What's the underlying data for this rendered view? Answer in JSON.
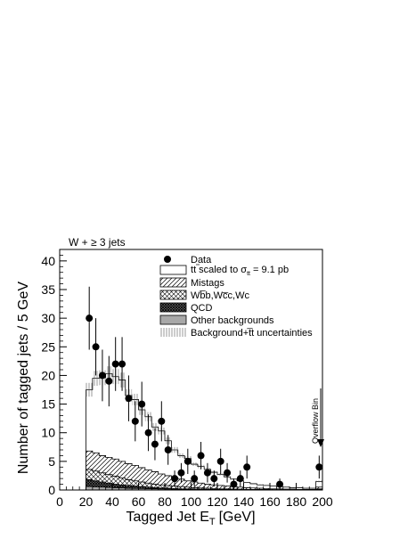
{
  "chart_data": {
    "type": "bar",
    "title": "W + ≥ 3 jets",
    "xlabel": "Tagged Jet E",
    "xlabel_sub": "T",
    "xlabel_unit": "[GeV]",
    "ylabel": "Number of tagged jets / 5 GeV",
    "xlim": [
      0,
      200
    ],
    "ylim": [
      0,
      42
    ],
    "xticks": [
      0,
      20,
      40,
      60,
      80,
      100,
      120,
      140,
      160,
      180,
      200
    ],
    "yticks": [
      0,
      5,
      10,
      15,
      20,
      25,
      30,
      35,
      40
    ],
    "bin_width": 5,
    "bin_low_edges": [
      20,
      25,
      30,
      35,
      40,
      45,
      50,
      55,
      60,
      65,
      70,
      75,
      80,
      85,
      90,
      95,
      100,
      105,
      110,
      115,
      120,
      125,
      130,
      135,
      140,
      145,
      150,
      155,
      160,
      165,
      170,
      175,
      180,
      185,
      190,
      195
    ],
    "series": [
      {
        "name": "t̅t scaled to σtt = 9.1 pb",
        "style": "open",
        "stack_total": [
          17.5,
          19.5,
          19.6,
          20.3,
          19.8,
          19.2,
          16.5,
          15.8,
          14.0,
          12.8,
          11.0,
          10.3,
          8.6,
          7.0,
          6.0,
          5.5,
          4.5,
          4.1,
          3.6,
          3.1,
          2.7,
          2.3,
          1.9,
          1.6,
          1.3,
          1.1,
          0.9,
          0.8,
          0.7,
          0.6,
          0.5,
          0.4,
          0.4,
          0.3,
          0.3,
          1.5
        ]
      },
      {
        "name": "Mistags",
        "style": "hatched",
        "stack_total": [
          6.8,
          6.5,
          6.0,
          5.7,
          5.4,
          5.0,
          4.6,
          4.3,
          3.9,
          3.5,
          3.2,
          2.8,
          2.5,
          2.2,
          1.9,
          1.6,
          1.4,
          1.2,
          1.0,
          0.9,
          0.8,
          0.7,
          0.6,
          0.5,
          0.4,
          0.35,
          0.3,
          0.25,
          0.2,
          0.2,
          0.15,
          0.15,
          0.1,
          0.1,
          0.1,
          0.5
        ]
      },
      {
        "name": "Wb̅b,Wc̅c,Wc",
        "style": "cross-hatched",
        "stack_total": [
          3.6,
          3.3,
          3.0,
          2.7,
          2.4,
          2.1,
          1.8,
          1.6,
          1.4,
          1.2,
          1.0,
          0.9,
          0.8,
          0.7,
          0.6,
          0.5,
          0.4,
          0.35,
          0.3,
          0.25,
          0.2,
          0.2,
          0.15,
          0.15,
          0.1,
          0.1,
          0.1,
          0.1,
          0.05,
          0.05,
          0.05,
          0.05,
          0.05,
          0.05,
          0.05,
          0.2
        ]
      },
      {
        "name": "QCD",
        "style": "dense-cross-hatched",
        "stack_total": [
          1.8,
          1.6,
          1.4,
          1.2,
          1.0,
          0.9,
          0.8,
          0.7,
          0.6,
          0.5,
          0.4,
          0.35,
          0.3,
          0.25,
          0.2,
          0.2,
          0.15,
          0.15,
          0.1,
          0.1,
          0.1,
          0.1,
          0.05,
          0.05,
          0.05,
          0.05,
          0.05,
          0.05,
          0.05,
          0.05,
          0.05,
          0.05,
          0.05,
          0.05,
          0.05,
          0.1
        ]
      },
      {
        "name": "Other backgrounds",
        "style": "filled-gray",
        "stack_total": [
          0.6,
          0.55,
          0.5,
          0.45,
          0.4,
          0.35,
          0.3,
          0.28,
          0.25,
          0.22,
          0.2,
          0.18,
          0.15,
          0.12,
          0.1,
          0.1,
          0.08,
          0.08,
          0.06,
          0.06,
          0.05,
          0.05,
          0.04,
          0.04,
          0.03,
          0.03,
          0.03,
          0.03,
          0.02,
          0.02,
          0.02,
          0.02,
          0.02,
          0.02,
          0.02,
          0.05
        ]
      }
    ],
    "uncertainty": {
      "name": "Background+t̅t uncertainties",
      "style": "vertical-hatch",
      "band": [
        1.2,
        1.3,
        1.3,
        1.3,
        1.3,
        1.3,
        1.1,
        1.0,
        0.9,
        0.8,
        0.7,
        0.6,
        0.6,
        0.5,
        0.4,
        0.4,
        0.3,
        0.3,
        0.25,
        0.2,
        0.2,
        0.15,
        0.15,
        0.1,
        0.1,
        0.1,
        0.1,
        0.1,
        0.1,
        0.1,
        0.05,
        0.05,
        0.05,
        0.05,
        0.05,
        0.15
      ]
    },
    "data_points": {
      "name": "Data",
      "x": [
        22.5,
        27.5,
        32.5,
        37.5,
        42.5,
        47.5,
        52.5,
        57.5,
        62.5,
        67.5,
        72.5,
        77.5,
        82.5,
        87.5,
        92.5,
        97.5,
        102.5,
        107.5,
        112.5,
        117.5,
        122.5,
        127.5,
        132.5,
        137.5,
        142.5,
        167.5,
        197.5
      ],
      "y": [
        30,
        25,
        20,
        19,
        22,
        22,
        16,
        12,
        15,
        10,
        8,
        12,
        7,
        2,
        3,
        5,
        2,
        6,
        3,
        2,
        5,
        3,
        1,
        2,
        4,
        1,
        4
      ],
      "err": [
        5.5,
        5.0,
        4.5,
        4.4,
        4.7,
        4.7,
        4.0,
        3.5,
        3.9,
        3.2,
        2.8,
        3.5,
        2.6,
        1.4,
        1.7,
        2.2,
        1.4,
        2.4,
        1.7,
        1.4,
        2.2,
        1.7,
        1.0,
        1.4,
        2.0,
        1.0,
        2.0
      ]
    },
    "annotation": "Overflow Bin",
    "legend_placement": "top-right",
    "grid": false
  }
}
